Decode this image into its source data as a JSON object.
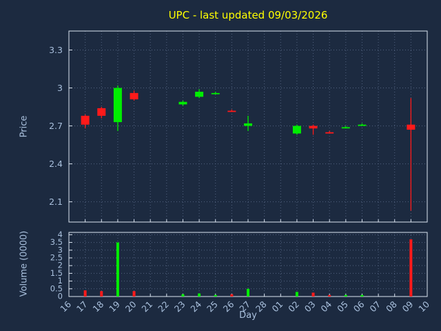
{
  "chart_data": {
    "type": "candlestick",
    "title": "UPC - last updated 09/03/2026",
    "xlabel": "Day",
    "ylabel_price": "Price",
    "ylabel_volume": "Volume (0000)",
    "legend": "none",
    "grid": "dotted",
    "x_categories": [
      "16",
      "17",
      "18",
      "19",
      "20",
      "21",
      "22",
      "23",
      "24",
      "25",
      "26",
      "27",
      "28",
      "01",
      "02",
      "03",
      "04",
      "05",
      "06",
      "07",
      "08",
      "09",
      "10"
    ],
    "price_axis": {
      "tick_labels": [
        "3.3",
        "3",
        "2.7",
        "2.4",
        "2.1"
      ],
      "tick_values": [
        3.3,
        3.0,
        2.7,
        2.4,
        2.1
      ],
      "range": [
        1.94,
        3.45
      ]
    },
    "volume_axis": {
      "tick_labels": [
        "4",
        "3.5",
        "3",
        "2.5",
        "2",
        "1.5",
        "1",
        "0.5",
        "0"
      ],
      "tick_values": [
        4,
        3.5,
        3,
        2.5,
        2,
        1.5,
        1,
        0.5,
        0
      ],
      "range": [
        0,
        4.15
      ]
    },
    "candles": [
      {
        "day": "17",
        "open": 2.78,
        "high": 2.79,
        "low": 2.68,
        "close": 2.71,
        "volume": 0.4,
        "dir": "down"
      },
      {
        "day": "18",
        "open": 2.84,
        "high": 2.85,
        "low": 2.76,
        "close": 2.78,
        "volume": 0.35,
        "dir": "down"
      },
      {
        "day": "19",
        "open": 2.73,
        "high": 3.02,
        "low": 2.66,
        "close": 3.0,
        "volume": 3.5,
        "dir": "up"
      },
      {
        "day": "20",
        "open": 2.96,
        "high": 2.98,
        "low": 2.9,
        "close": 2.91,
        "volume": 0.35,
        "dir": "down"
      },
      {
        "day": "23",
        "open": 2.87,
        "high": 2.9,
        "low": 2.86,
        "close": 2.89,
        "volume": 0.15,
        "dir": "up"
      },
      {
        "day": "24",
        "open": 2.93,
        "high": 2.99,
        "low": 2.92,
        "close": 2.97,
        "volume": 0.2,
        "dir": "up"
      },
      {
        "day": "25",
        "open": 2.96,
        "high": 2.97,
        "low": 2.95,
        "close": 2.96,
        "volume": 0.1,
        "dir": "up"
      },
      {
        "day": "26",
        "open": 2.82,
        "high": 2.83,
        "low": 2.81,
        "close": 2.82,
        "volume": 0.15,
        "dir": "down"
      },
      {
        "day": "27",
        "open": 2.7,
        "high": 2.78,
        "low": 2.66,
        "close": 2.72,
        "volume": 0.5,
        "dir": "up"
      },
      {
        "day": "02",
        "open": 2.64,
        "high": 2.71,
        "low": 2.63,
        "close": 2.7,
        "volume": 0.3,
        "dir": "up"
      },
      {
        "day": "03",
        "open": 2.7,
        "high": 2.71,
        "low": 2.63,
        "close": 2.68,
        "volume": 0.25,
        "dir": "down"
      },
      {
        "day": "04",
        "open": 2.65,
        "high": 2.66,
        "low": 2.64,
        "close": 2.65,
        "volume": 0.1,
        "dir": "down"
      },
      {
        "day": "05",
        "open": 2.69,
        "high": 2.7,
        "low": 2.68,
        "close": 2.69,
        "volume": 0.1,
        "dir": "up"
      },
      {
        "day": "06",
        "open": 2.71,
        "high": 2.72,
        "low": 2.7,
        "close": 2.71,
        "volume": 0.1,
        "dir": "up"
      },
      {
        "day": "09",
        "open": 2.71,
        "high": 2.92,
        "low": 2.03,
        "close": 2.67,
        "volume": 3.7,
        "dir": "down"
      }
    ]
  },
  "colors": {
    "background": "#1c2a40",
    "title": "#ffff00",
    "axis_text": "#a9c0dd",
    "grid": "#536381",
    "border": "#dde6f2",
    "up": "#00ee00",
    "down": "#ff1a1a"
  }
}
